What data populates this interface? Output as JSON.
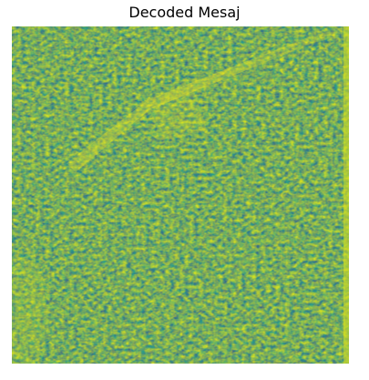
{
  "figure": {
    "title": "Decoded Mesaj",
    "colormap": {
      "name": "viridis",
      "low": "#3b5f8a",
      "mid": "#2a9b8a",
      "bright": "#43a86e",
      "high": "#d8e21f",
      "peak": "#f3e81e"
    }
  }
}
